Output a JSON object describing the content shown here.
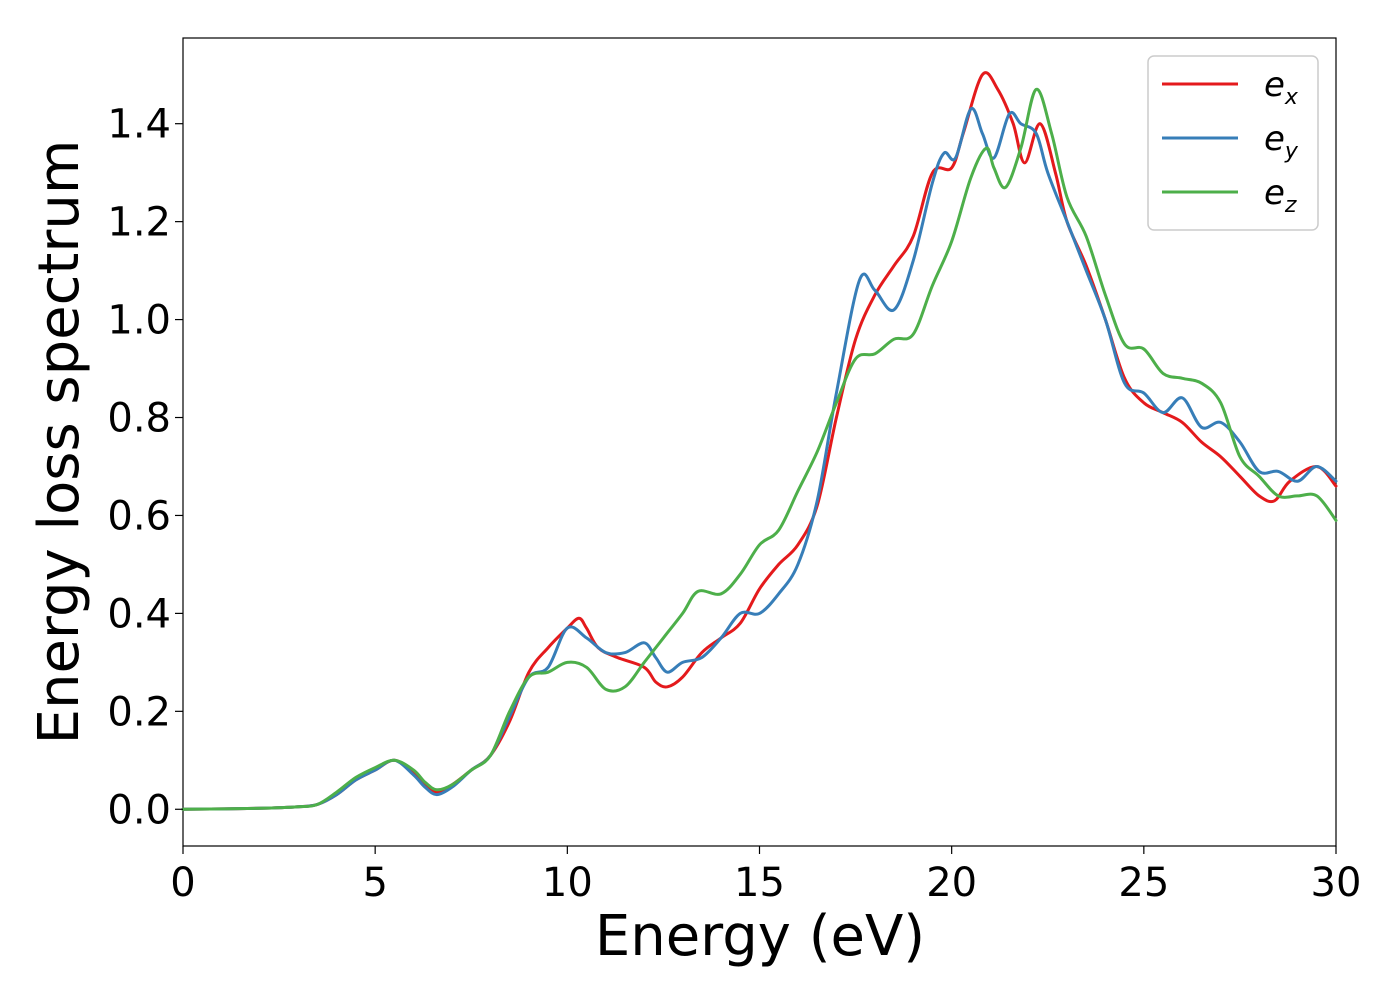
{
  "chart_data": {
    "type": "line",
    "xlabel": "Energy (eV)",
    "ylabel": "Energy loss spectrum",
    "xlim": [
      0,
      30
    ],
    "ylim": [
      -0.075,
      1.575
    ],
    "xticks": [
      0,
      5,
      10,
      15,
      20,
      25,
      30
    ],
    "xtick_labels": [
      "0",
      "5",
      "10",
      "15",
      "20",
      "25",
      "30"
    ],
    "yticks": [
      0.0,
      0.2,
      0.4,
      0.6,
      0.8,
      1.0,
      1.2,
      1.4
    ],
    "ytick_labels": [
      "0.0",
      "0.2",
      "0.4",
      "0.6",
      "0.8",
      "1.0",
      "1.2",
      "1.4"
    ],
    "grid": false,
    "legend_position": "top-right",
    "series": [
      {
        "name": "e",
        "subscript": "x",
        "color": "#e41a1c",
        "points": [
          [
            0,
            0
          ],
          [
            2,
            0.002
          ],
          [
            3,
            0.005
          ],
          [
            3.5,
            0.01
          ],
          [
            4,
            0.03
          ],
          [
            4.5,
            0.06
          ],
          [
            5,
            0.08
          ],
          [
            5.5,
            0.1
          ],
          [
            6,
            0.075
          ],
          [
            6.3,
            0.05
          ],
          [
            6.6,
            0.035
          ],
          [
            7,
            0.05
          ],
          [
            7.5,
            0.08
          ],
          [
            8,
            0.11
          ],
          [
            8.5,
            0.18
          ],
          [
            9,
            0.28
          ],
          [
            9.5,
            0.33
          ],
          [
            10,
            0.37
          ],
          [
            10.3,
            0.39
          ],
          [
            10.5,
            0.37
          ],
          [
            10.8,
            0.33
          ],
          [
            11.3,
            0.31
          ],
          [
            12,
            0.29
          ],
          [
            12.3,
            0.26
          ],
          [
            12.6,
            0.25
          ],
          [
            13,
            0.27
          ],
          [
            13.5,
            0.32
          ],
          [
            14,
            0.35
          ],
          [
            14.5,
            0.38
          ],
          [
            15,
            0.45
          ],
          [
            15.5,
            0.5
          ],
          [
            16,
            0.54
          ],
          [
            16.5,
            0.62
          ],
          [
            17,
            0.8
          ],
          [
            17.5,
            0.96
          ],
          [
            18,
            1.05
          ],
          [
            18.5,
            1.11
          ],
          [
            19,
            1.17
          ],
          [
            19.5,
            1.3
          ],
          [
            20,
            1.31
          ],
          [
            20.3,
            1.38
          ],
          [
            20.8,
            1.5
          ],
          [
            21.2,
            1.47
          ],
          [
            21.6,
            1.4
          ],
          [
            21.9,
            1.32
          ],
          [
            22.3,
            1.4
          ],
          [
            22.7,
            1.3
          ],
          [
            23,
            1.2
          ],
          [
            23.5,
            1.11
          ],
          [
            24,
            1.0
          ],
          [
            24.5,
            0.88
          ],
          [
            25,
            0.83
          ],
          [
            25.5,
            0.81
          ],
          [
            26,
            0.79
          ],
          [
            26.5,
            0.75
          ],
          [
            27,
            0.72
          ],
          [
            27.5,
            0.68
          ],
          [
            28,
            0.64
          ],
          [
            28.4,
            0.63
          ],
          [
            28.8,
            0.67
          ],
          [
            29.5,
            0.7
          ],
          [
            30,
            0.66
          ]
        ]
      },
      {
        "name": "e",
        "subscript": "y",
        "color": "#377eb8",
        "points": [
          [
            0,
            0
          ],
          [
            2,
            0.002
          ],
          [
            3,
            0.005
          ],
          [
            3.5,
            0.01
          ],
          [
            4,
            0.03
          ],
          [
            4.5,
            0.06
          ],
          [
            5,
            0.08
          ],
          [
            5.5,
            0.1
          ],
          [
            6,
            0.07
          ],
          [
            6.3,
            0.045
          ],
          [
            6.6,
            0.03
          ],
          [
            7,
            0.045
          ],
          [
            7.5,
            0.08
          ],
          [
            8,
            0.11
          ],
          [
            8.5,
            0.19
          ],
          [
            9,
            0.27
          ],
          [
            9.5,
            0.29
          ],
          [
            10,
            0.37
          ],
          [
            10.5,
            0.35
          ],
          [
            11,
            0.32
          ],
          [
            11.5,
            0.32
          ],
          [
            12,
            0.34
          ],
          [
            12.3,
            0.31
          ],
          [
            12.6,
            0.28
          ],
          [
            13,
            0.3
          ],
          [
            13.5,
            0.31
          ],
          [
            14,
            0.35
          ],
          [
            14.5,
            0.4
          ],
          [
            15,
            0.4
          ],
          [
            15.5,
            0.44
          ],
          [
            16,
            0.5
          ],
          [
            16.5,
            0.63
          ],
          [
            17,
            0.85
          ],
          [
            17.6,
            1.08
          ],
          [
            18,
            1.06
          ],
          [
            18.5,
            1.02
          ],
          [
            19,
            1.12
          ],
          [
            19.5,
            1.28
          ],
          [
            19.8,
            1.34
          ],
          [
            20.1,
            1.33
          ],
          [
            20.5,
            1.43
          ],
          [
            20.8,
            1.38
          ],
          [
            21.1,
            1.33
          ],
          [
            21.5,
            1.42
          ],
          [
            21.8,
            1.4
          ],
          [
            22.2,
            1.38
          ],
          [
            22.5,
            1.3
          ],
          [
            23,
            1.2
          ],
          [
            23.5,
            1.1
          ],
          [
            24,
            1.0
          ],
          [
            24.5,
            0.87
          ],
          [
            25,
            0.85
          ],
          [
            25.5,
            0.81
          ],
          [
            26,
            0.84
          ],
          [
            26.5,
            0.78
          ],
          [
            27,
            0.79
          ],
          [
            27.5,
            0.75
          ],
          [
            28,
            0.69
          ],
          [
            28.5,
            0.69
          ],
          [
            29,
            0.67
          ],
          [
            29.5,
            0.7
          ],
          [
            30,
            0.67
          ]
        ]
      },
      {
        "name": "e",
        "subscript": "z",
        "color": "#4daf4a",
        "points": [
          [
            0,
            0
          ],
          [
            2,
            0.002
          ],
          [
            3,
            0.005
          ],
          [
            3.5,
            0.01
          ],
          [
            4,
            0.035
          ],
          [
            4.5,
            0.065
          ],
          [
            5,
            0.085
          ],
          [
            5.5,
            0.1
          ],
          [
            6,
            0.08
          ],
          [
            6.3,
            0.055
          ],
          [
            6.6,
            0.04
          ],
          [
            7,
            0.05
          ],
          [
            7.5,
            0.08
          ],
          [
            8,
            0.11
          ],
          [
            8.5,
            0.2
          ],
          [
            9,
            0.27
          ],
          [
            9.5,
            0.28
          ],
          [
            10,
            0.3
          ],
          [
            10.5,
            0.29
          ],
          [
            11,
            0.245
          ],
          [
            11.5,
            0.25
          ],
          [
            12,
            0.3
          ],
          [
            12.5,
            0.35
          ],
          [
            13,
            0.4
          ],
          [
            13.4,
            0.445
          ],
          [
            14,
            0.44
          ],
          [
            14.5,
            0.48
          ],
          [
            15,
            0.54
          ],
          [
            15.5,
            0.57
          ],
          [
            16,
            0.65
          ],
          [
            16.5,
            0.73
          ],
          [
            17,
            0.83
          ],
          [
            17.5,
            0.92
          ],
          [
            18,
            0.93
          ],
          [
            18.5,
            0.96
          ],
          [
            19,
            0.97
          ],
          [
            19.5,
            1.07
          ],
          [
            20,
            1.16
          ],
          [
            20.5,
            1.29
          ],
          [
            20.9,
            1.35
          ],
          [
            21.1,
            1.31
          ],
          [
            21.4,
            1.27
          ],
          [
            21.8,
            1.35
          ],
          [
            22.2,
            1.47
          ],
          [
            22.6,
            1.38
          ],
          [
            23,
            1.25
          ],
          [
            23.5,
            1.17
          ],
          [
            24,
            1.05
          ],
          [
            24.5,
            0.95
          ],
          [
            25,
            0.94
          ],
          [
            25.5,
            0.89
          ],
          [
            26,
            0.88
          ],
          [
            26.5,
            0.87
          ],
          [
            27,
            0.83
          ],
          [
            27.5,
            0.72
          ],
          [
            28,
            0.68
          ],
          [
            28.5,
            0.64
          ],
          [
            29,
            0.64
          ],
          [
            29.5,
            0.64
          ],
          [
            30,
            0.59
          ]
        ]
      }
    ]
  }
}
